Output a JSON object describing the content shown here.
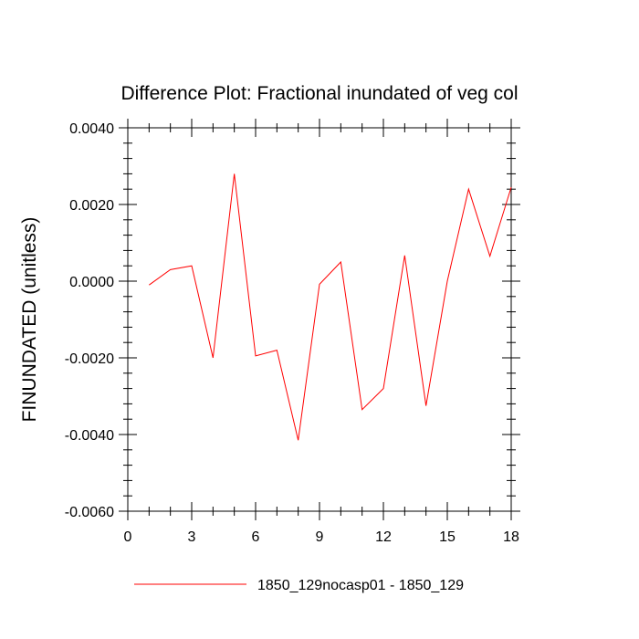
{
  "chart_data": {
    "type": "line",
    "title": "Difference Plot: Fractional inundated of veg col",
    "xlabel": "",
    "ylabel": "FINUNDATED  (unitless)",
    "xlim": [
      0,
      18
    ],
    "ylim": [
      -0.006,
      0.004
    ],
    "x_ticks": [
      0,
      3,
      6,
      9,
      12,
      15,
      18
    ],
    "x_tick_labels": [
      "0",
      "3",
      "6",
      "9",
      "12",
      "15",
      "18"
    ],
    "y_ticks": [
      0.004,
      0.002,
      0.0,
      -0.002,
      -0.004,
      -0.006
    ],
    "y_tick_labels": [
      "0.0040",
      "0.0020",
      "0.0000",
      "-0.0020",
      "-0.0040",
      "-0.0060"
    ],
    "grid": false,
    "legend_position": "bottom",
    "series": [
      {
        "name": "1850_129nocasp01 - 1850_129",
        "color": "#ff0000",
        "x": [
          1,
          2,
          3,
          4,
          5,
          6,
          7,
          8,
          9,
          10,
          11,
          12,
          13,
          14,
          15,
          16,
          17,
          18
        ],
        "values": [
          -0.0001,
          0.0003,
          0.0004,
          -0.002,
          0.0028,
          -0.00195,
          -0.0018,
          -0.00415,
          -8e-05,
          0.0005,
          -0.00335,
          -0.0028,
          0.00067,
          -0.00325,
          0.0,
          0.0024,
          0.00065,
          0.00245
        ]
      }
    ]
  }
}
